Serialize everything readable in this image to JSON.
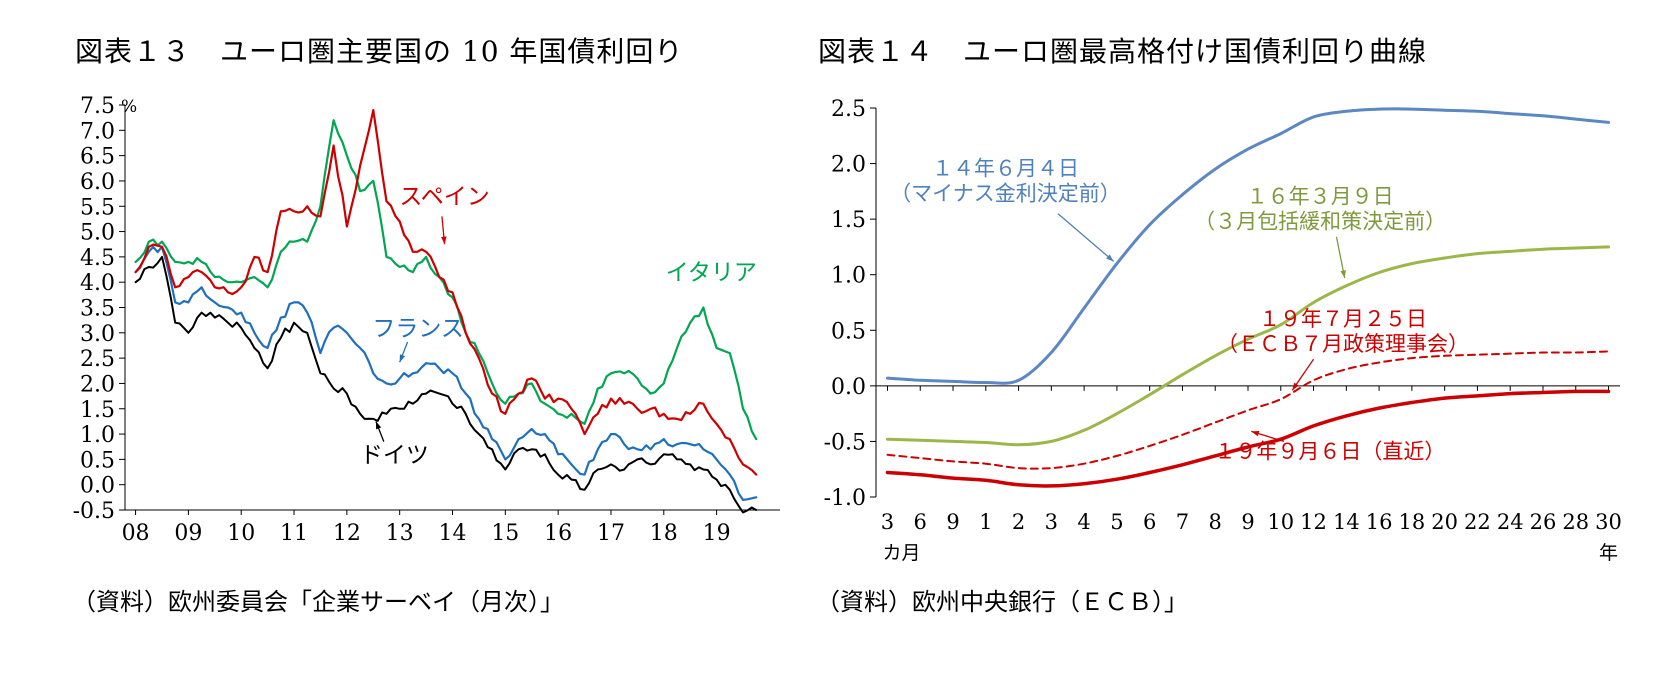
{
  "page": {
    "background": "#ffffff"
  },
  "chart_data": [
    {
      "type": "line",
      "title": "図表１３　ユーロ圏主要国の 10 年国債利回り",
      "source": "（資料）欧州委員会「企業サーベイ（月次）」",
      "x_axis": "bottom",
      "ylim": [
        -0.5,
        7.5
      ],
      "ytick_step": 0.5,
      "y_unit": "%",
      "grid": false,
      "legend": "inline-annotations",
      "jitter": true,
      "x": [
        2008,
        2008.25,
        2008.5,
        2008.75,
        2009,
        2009.25,
        2009.5,
        2009.75,
        2010,
        2010.25,
        2010.5,
        2010.75,
        2011,
        2011.25,
        2011.5,
        2011.75,
        2012,
        2012.25,
        2012.5,
        2012.75,
        2013,
        2013.25,
        2013.5,
        2013.75,
        2014,
        2014.25,
        2014.5,
        2014.75,
        2015,
        2015.25,
        2015.5,
        2015.75,
        2016,
        2016.25,
        2016.5,
        2016.75,
        2017,
        2017.25,
        2017.5,
        2017.75,
        2018,
        2018.25,
        2018.5,
        2018.75,
        2019,
        2019.25,
        2019.5,
        2019.75
      ],
      "xtick_values": [
        2008,
        2009,
        2010,
        2011,
        2012,
        2013,
        2014,
        2015,
        2016,
        2017,
        2018,
        2019
      ],
      "xtick_labels": [
        "08",
        "09",
        "10",
        "11",
        "12",
        "13",
        "14",
        "15",
        "16",
        "17",
        "18",
        "19"
      ],
      "series": [
        {
          "name": "イタリア",
          "color": "#00a651",
          "width": 2.2,
          "values": [
            4.4,
            4.8,
            4.8,
            4.4,
            4.4,
            4.4,
            4.1,
            4.0,
            4.0,
            4.1,
            3.9,
            4.6,
            4.8,
            4.8,
            5.5,
            7.2,
            6.5,
            5.8,
            6.0,
            4.5,
            4.3,
            4.2,
            4.5,
            4.1,
            3.7,
            3.0,
            2.6,
            2.0,
            1.6,
            1.8,
            2.0,
            1.6,
            1.4,
            1.4,
            1.2,
            1.9,
            2.2,
            2.2,
            2.1,
            1.8,
            2.0,
            2.7,
            3.2,
            3.5,
            2.7,
            2.6,
            1.5,
            0.9
          ]
        },
        {
          "name": "フランス",
          "color": "#1f6fbf",
          "width": 2.2,
          "values": [
            4.2,
            4.6,
            4.7,
            3.6,
            3.6,
            3.9,
            3.6,
            3.5,
            3.4,
            3.0,
            2.7,
            3.3,
            3.6,
            3.4,
            2.6,
            3.1,
            3.0,
            2.7,
            2.2,
            2.0,
            2.1,
            2.2,
            2.4,
            2.3,
            2.2,
            1.8,
            1.3,
            0.9,
            0.5,
            0.9,
            1.1,
            1.0,
            0.6,
            0.4,
            0.2,
            0.7,
            1.0,
            0.8,
            0.7,
            0.7,
            0.9,
            0.8,
            0.8,
            0.7,
            0.5,
            0.2,
            -0.3,
            -0.25
          ]
        },
        {
          "name": "ドイツ",
          "color": "#000000",
          "width": 2,
          "values": [
            4.0,
            4.3,
            4.5,
            3.2,
            3.0,
            3.4,
            3.3,
            3.2,
            3.1,
            2.7,
            2.3,
            2.9,
            3.2,
            3.0,
            2.2,
            1.9,
            1.8,
            1.4,
            1.3,
            1.4,
            1.5,
            1.6,
            1.8,
            1.8,
            1.6,
            1.4,
            1.0,
            0.7,
            0.3,
            0.7,
            0.7,
            0.6,
            0.2,
            0.1,
            -0.1,
            0.3,
            0.4,
            0.3,
            0.5,
            0.4,
            0.6,
            0.5,
            0.4,
            0.3,
            0.1,
            -0.1,
            -0.55,
            -0.5
          ]
        },
        {
          "name": "スペイン",
          "color": "#cc0000",
          "width": 2.2,
          "values": [
            4.2,
            4.7,
            4.7,
            3.9,
            4.1,
            4.2,
            3.9,
            3.8,
            3.9,
            4.5,
            4.2,
            5.4,
            5.4,
            5.5,
            5.3,
            6.7,
            5.1,
            6.3,
            7.4,
            5.6,
            5.2,
            4.6,
            4.6,
            4.1,
            3.8,
            3.0,
            2.5,
            1.8,
            1.4,
            1.8,
            2.1,
            1.7,
            1.7,
            1.5,
            1.0,
            1.4,
            1.7,
            1.6,
            1.5,
            1.5,
            1.4,
            1.3,
            1.4,
            1.6,
            1.2,
            0.9,
            0.4,
            0.2
          ]
        }
      ],
      "annotations": [
        {
          "lines": [
            "スペイン"
          ],
          "x": 2013.85,
          "y": 5.7,
          "color": "#cc0000",
          "arrow": {
            "x1": 2013.8,
            "y1": 5.3,
            "x2": 2013.85,
            "y2": 4.75
          }
        },
        {
          "lines": [
            "フランス"
          ],
          "x": 2013.35,
          "y": 3.1,
          "color": "#1f6fbf",
          "arrow": {
            "x1": 2013.15,
            "y1": 2.82,
            "x2": 2013.0,
            "y2": 2.42
          }
        },
        {
          "lines": [
            "イタリア"
          ],
          "x": 2018.9,
          "y": 4.2,
          "color": "#00a651"
        },
        {
          "lines": [
            "ドイツ"
          ],
          "x": 2012.9,
          "y": 0.6,
          "color": "#000000",
          "arrow": {
            "x1": 2012.7,
            "y1": 0.85,
            "x2": 2012.55,
            "y2": 1.25
          }
        }
      ]
    },
    {
      "type": "line",
      "title": "図表１４　ユーロ圏最高格付け国債利回り曲線",
      "source": "（資料）欧州中央銀行（ＥＣＢ）」",
      "x_axis": "zero",
      "ylim": [
        -1.0,
        2.5
      ],
      "ytick_step": 0.5,
      "grid": false,
      "legend": "inline-annotations",
      "categories": [
        "3",
        "6",
        "9",
        "1",
        "2",
        "3",
        "4",
        "5",
        "6",
        "7",
        "8",
        "9",
        "10",
        "12",
        "14",
        "16",
        "18",
        "20",
        "22",
        "24",
        "26",
        "28",
        "30"
      ],
      "x_unit_left": "カ月",
      "x_unit_right": "年",
      "series": [
        {
          "name": "１４年６月４日（マイナス金利決定前）",
          "color": "#5b87c5",
          "width": 3,
          "values": [
            0.07,
            0.05,
            0.04,
            0.03,
            0.05,
            0.3,
            0.7,
            1.1,
            1.45,
            1.72,
            1.95,
            2.13,
            2.27,
            2.42,
            2.47,
            2.49,
            2.49,
            2.48,
            2.47,
            2.45,
            2.43,
            2.4,
            2.37
          ]
        },
        {
          "name": "１６年３月９日（３月包括緩和策決定前）",
          "color": "#9cb64a",
          "width": 3,
          "values": [
            -0.48,
            -0.49,
            -0.5,
            -0.51,
            -0.53,
            -0.5,
            -0.4,
            -0.25,
            -0.08,
            0.1,
            0.27,
            0.42,
            0.55,
            0.75,
            0.9,
            1.02,
            1.1,
            1.15,
            1.19,
            1.21,
            1.23,
            1.24,
            1.25
          ]
        },
        {
          "name": "１９年７月２５日（ＥＣＢ７月政策理事会）",
          "color": "#cc0000",
          "width": 2,
          "dash": "7 5",
          "values": [
            -0.62,
            -0.65,
            -0.68,
            -0.7,
            -0.74,
            -0.74,
            -0.7,
            -0.63,
            -0.54,
            -0.44,
            -0.33,
            -0.22,
            -0.12,
            0.05,
            0.15,
            0.21,
            0.25,
            0.27,
            0.28,
            0.29,
            0.3,
            0.3,
            0.31
          ]
        },
        {
          "name": "１９年９月６日（直近）",
          "color": "#cc0000",
          "width": 3.5,
          "values": [
            -0.78,
            -0.8,
            -0.83,
            -0.85,
            -0.89,
            -0.9,
            -0.88,
            -0.84,
            -0.78,
            -0.71,
            -0.63,
            -0.55,
            -0.48,
            -0.36,
            -0.27,
            -0.2,
            -0.15,
            -0.11,
            -0.09,
            -0.07,
            -0.06,
            -0.05,
            -0.05
          ]
        }
      ],
      "annotations": [
        {
          "lines": [
            "１４年６月４日",
            "（マイナス金利決定前）"
          ],
          "x": 3.6,
          "y": 1.85,
          "color": "#4f81bd",
          "arrow": {
            "x1": 5.2,
            "y1": 1.55,
            "x2": 6.9,
            "y2": 1.12
          }
        },
        {
          "lines": [
            "１６年３月９日",
            "（３月包括緩和策決定前）"
          ],
          "x": 13.2,
          "y": 1.6,
          "color": "#7f9a3d",
          "arrow": {
            "x1": 13.7,
            "y1": 1.34,
            "x2": 13.95,
            "y2": 0.97
          }
        },
        {
          "lines": [
            "１９年７月２５日",
            "（ＥＣＢ７月政策理事会）"
          ],
          "x": 13.9,
          "y": 0.5,
          "color": "#cc0000",
          "arrow": {
            "x1": 13.0,
            "y1": 0.24,
            "x2": 12.35,
            "y2": -0.04
          }
        },
        {
          "lines": [
            "１９年９月６日（直近）"
          ],
          "x": 13.5,
          "y": -0.58,
          "color": "#cc0000",
          "arrow": {
            "x1": 12.1,
            "y1": -0.5,
            "x2": 11.1,
            "y2": -0.41
          }
        }
      ]
    }
  ]
}
